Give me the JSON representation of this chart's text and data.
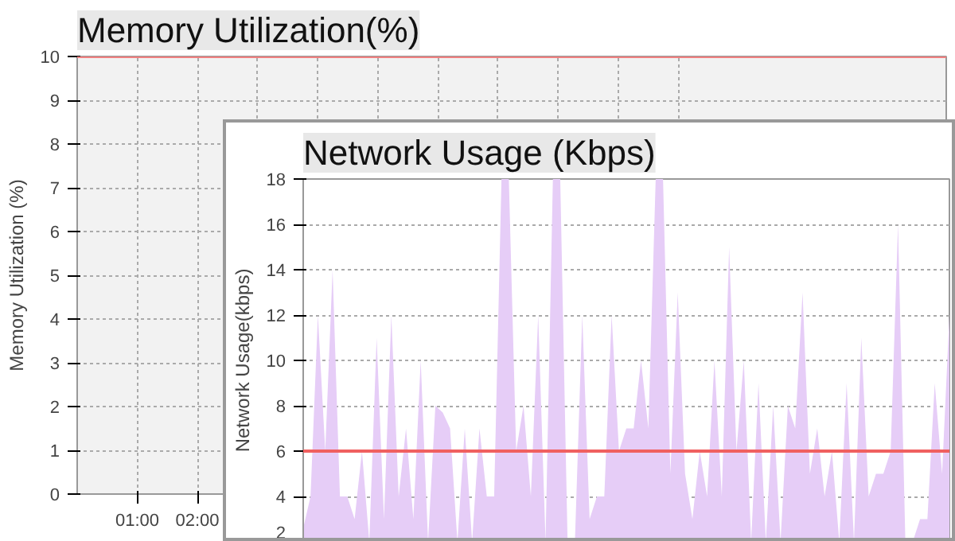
{
  "chart_data": [
    {
      "type": "line",
      "title": "Memory Utilization(%)",
      "ylabel": "Memory Utilization (%)",
      "xlim": [
        0,
        14.46
      ],
      "ylim": [
        0,
        10
      ],
      "xticks": [
        {
          "value": 1,
          "label": "01:00"
        },
        {
          "value": 2,
          "label": "02:00"
        },
        {
          "value": 3,
          "label": null
        },
        {
          "value": 4,
          "label": null
        },
        {
          "value": 5,
          "label": null
        },
        {
          "value": 6,
          "label": null
        },
        {
          "value": 7,
          "label": null
        },
        {
          "value": 8,
          "label": null
        },
        {
          "value": 9,
          "label": null
        },
        {
          "value": 10,
          "label": null
        }
      ],
      "yticks": [
        0,
        1,
        2,
        3,
        4,
        5,
        6,
        7,
        8,
        9,
        10
      ],
      "grid": true,
      "ref_lines": [
        {
          "axis": "y",
          "value": 10,
          "color": "#f08080"
        }
      ]
    },
    {
      "type": "area",
      "title": "Network Usage (Kbps)",
      "ylabel": "Network Usage(kbps)",
      "ylim": [
        2,
        18
      ],
      "categories": [
        null,
        null,
        null,
        null,
        null,
        null,
        null,
        null,
        null,
        null,
        null,
        null,
        null,
        null,
        null,
        null,
        null,
        null,
        null,
        null,
        null,
        null,
        null,
        null,
        null,
        null,
        null,
        null,
        null,
        null,
        null,
        null,
        null,
        null,
        null,
        null,
        null,
        null,
        null,
        null,
        null,
        null,
        null,
        null,
        null,
        null,
        null,
        null,
        null,
        null,
        null,
        null,
        null,
        null,
        null,
        null,
        null,
        null,
        null,
        null,
        null,
        null,
        null,
        null,
        null,
        null,
        null,
        null,
        null,
        null,
        null,
        null,
        null,
        null,
        null,
        null,
        null,
        null,
        null,
        null,
        null,
        null,
        null,
        null,
        null,
        null,
        null,
        null,
        null
      ],
      "yticks": [
        2,
        4,
        6,
        8,
        10,
        12,
        14,
        16,
        18
      ],
      "grid": "y",
      "ref_lines": [
        {
          "axis": "y",
          "value": 6,
          "color": "#f06060"
        }
      ],
      "series": [
        {
          "color": "#e6cdf7",
          "values": [
            2.6,
            4,
            12,
            6,
            14,
            4,
            4,
            3,
            6,
            2,
            11,
            3,
            12,
            4,
            7,
            3,
            10,
            2,
            8,
            7.7,
            7,
            2,
            7,
            2,
            7,
            4,
            4,
            18,
            18,
            6,
            8,
            4,
            12,
            2,
            18,
            18,
            2,
            2,
            12,
            3,
            4,
            4,
            12,
            6,
            7,
            7,
            10,
            7,
            18,
            18,
            5,
            13,
            5,
            3,
            6,
            4,
            10,
            4,
            15,
            6,
            10,
            2,
            9,
            2,
            8,
            2,
            8,
            7,
            13,
            5,
            7,
            4,
            6,
            2,
            9,
            2,
            11,
            4,
            5,
            5,
            6,
            16,
            2,
            2,
            3,
            3,
            9,
            5,
            12
          ]
        }
      ]
    }
  ]
}
